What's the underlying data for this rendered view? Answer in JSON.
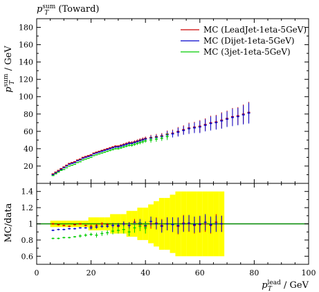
{
  "chart_data": [
    {
      "type": "scatter",
      "title": "p_T^sum (Toward)",
      "ylabel": "p_T^sum / GeV",
      "xlabel": "",
      "xlim": [
        0,
        100
      ],
      "ylim": [
        0,
        190
      ],
      "yticks": [
        20,
        40,
        60,
        80,
        100,
        120,
        140,
        160,
        180
      ],
      "legend_position": "top-right",
      "series": [
        {
          "name": "MC (LeadJet-1eta-5GeV)",
          "color": "#cc0000",
          "x": [
            6,
            7,
            8,
            9,
            10,
            11,
            12,
            13,
            14,
            15,
            16,
            17,
            18,
            19,
            20,
            21,
            22,
            23,
            24,
            25,
            26,
            27,
            28,
            29,
            30,
            31,
            32,
            33,
            34,
            35,
            36,
            37,
            38,
            39,
            40,
            42,
            44,
            46,
            48,
            50,
            52,
            54,
            56,
            58,
            60,
            62,
            64,
            66,
            68,
            70,
            72,
            74,
            76,
            78
          ],
          "y": [
            11,
            13,
            15,
            17,
            19,
            21,
            23,
            24,
            25,
            27,
            28,
            30,
            31,
            32,
            33,
            35,
            36,
            37,
            38,
            39,
            40,
            41,
            42,
            43,
            43,
            44,
            45,
            46,
            47,
            47,
            48,
            49,
            50,
            51,
            52,
            53,
            54,
            55,
            57,
            58,
            60,
            62,
            64,
            65,
            66,
            68,
            70,
            71,
            73,
            75,
            77,
            78,
            80,
            82
          ],
          "err": [
            0.3,
            0.3,
            0.3,
            0.3,
            0.3,
            0.3,
            0.3,
            0.3,
            0.3,
            0.4,
            0.4,
            0.4,
            0.4,
            0.5,
            0.5,
            0.5,
            0.6,
            0.6,
            0.7,
            0.7,
            0.8,
            0.9,
            1,
            1,
            1.1,
            1.2,
            1.3,
            1.4,
            1.5,
            1.6,
            1.7,
            1.8,
            2,
            2,
            2,
            3,
            3,
            3,
            4,
            4,
            5,
            5,
            6,
            6,
            7,
            7,
            8,
            8,
            9,
            9,
            10,
            10,
            11,
            12
          ]
        },
        {
          "name": "MC (Dijet-1eta-5GeV)",
          "color": "#0000cc",
          "x": [
            6,
            7,
            8,
            9,
            10,
            11,
            12,
            13,
            14,
            15,
            16,
            17,
            18,
            19,
            20,
            21,
            22,
            23,
            24,
            25,
            26,
            27,
            28,
            29,
            30,
            31,
            32,
            33,
            34,
            35,
            36,
            37,
            38,
            39,
            40,
            42,
            44,
            46,
            48,
            50,
            52,
            54,
            56,
            58,
            60,
            62,
            64,
            66,
            68,
            70,
            72,
            74,
            76,
            78
          ],
          "y": [
            10,
            12,
            14,
            16,
            18,
            20,
            22,
            23,
            24,
            26,
            27,
            29,
            30,
            31,
            32,
            34,
            35,
            36,
            37,
            38,
            39,
            40,
            41,
            42,
            42,
            43,
            44,
            45,
            46,
            46,
            47,
            48,
            49,
            50,
            51,
            52,
            53,
            54,
            56,
            57,
            59,
            61,
            63,
            64,
            65,
            67,
            69,
            70,
            72,
            74,
            76,
            77,
            79,
            81
          ],
          "err": [
            0.3,
            0.3,
            0.3,
            0.3,
            0.3,
            0.3,
            0.3,
            0.3,
            0.3,
            0.4,
            0.4,
            0.4,
            0.4,
            0.5,
            0.5,
            0.5,
            0.6,
            0.6,
            0.7,
            0.7,
            0.8,
            0.9,
            1,
            1,
            1.1,
            1.2,
            1.3,
            1.4,
            1.5,
            1.6,
            1.7,
            1.8,
            2,
            2,
            2,
            3,
            3,
            3,
            4,
            4,
            5,
            5,
            6,
            6,
            7,
            7,
            8,
            8,
            9,
            9,
            10,
            10,
            11,
            12
          ]
        },
        {
          "name": "MC (3jet-1eta-5GeV)",
          "color": "#00cc00",
          "x": [
            6,
            7,
            8,
            9,
            10,
            11,
            12,
            13,
            14,
            15,
            16,
            17,
            18,
            19,
            20,
            21,
            22,
            23,
            24,
            25,
            26,
            27,
            28,
            29,
            30,
            31,
            32,
            33,
            34,
            35,
            36,
            37,
            38,
            39,
            40,
            42,
            44,
            46,
            48
          ],
          "y": [
            9,
            11,
            13,
            15,
            16,
            18,
            20,
            21,
            22,
            24,
            25,
            27,
            28,
            29,
            30,
            32,
            33,
            34,
            35,
            36,
            37,
            38,
            39,
            40,
            40,
            41,
            42,
            43,
            44,
            44,
            45,
            46,
            47,
            48,
            49,
            50,
            51,
            52,
            54
          ],
          "err": [
            0.3,
            0.3,
            0.3,
            0.3,
            0.3,
            0.3,
            0.3,
            0.3,
            0.3,
            0.4,
            0.4,
            0.4,
            0.4,
            0.5,
            0.5,
            0.5,
            0.6,
            0.6,
            0.7,
            0.7,
            0.8,
            0.9,
            1,
            1,
            1.1,
            1.2,
            1.3,
            1.4,
            1.5,
            1.6,
            1.7,
            1.8,
            2,
            2,
            2,
            3,
            3,
            3,
            4
          ]
        }
      ]
    },
    {
      "type": "scatter",
      "ylabel": "MC/data",
      "xlabel": "p_T^lead / GeV",
      "xlim": [
        0,
        100
      ],
      "ylim": [
        0.5,
        1.5
      ],
      "xticks": [
        0,
        20,
        40,
        60,
        80,
        100
      ],
      "yticks": [
        0.6,
        0.8,
        1,
        1.2,
        1.4
      ],
      "reference_line": 1,
      "band_color": "#ffff00",
      "line_color": "#008800",
      "series": [
        {
          "name": "MC (LeadJet-1eta-5GeV)",
          "color": "#cc0000",
          "x": [
            6,
            8,
            10,
            12,
            14,
            16,
            18,
            20,
            22,
            24,
            26,
            28,
            30,
            32,
            34,
            36,
            38,
            40,
            42,
            44,
            46,
            48,
            50,
            52,
            54,
            56,
            58,
            60,
            62,
            64,
            66,
            68
          ],
          "y": [
            1.0,
            0.99,
            0.98,
            0.97,
            0.99,
            1.0,
            0.98,
            0.97,
            0.98,
            1.0,
            0.99,
            0.98,
            0.97,
            1.0,
            0.98,
            1.02,
            0.99,
            0.97,
            1.0,
            1.01,
            0.98,
            1.0,
            0.99,
            0.97,
            1.01,
            1.0,
            0.98,
            0.99,
            1.0,
            0.98,
            1.02,
            1.0
          ],
          "err": [
            0.01,
            0.01,
            0.01,
            0.01,
            0.01,
            0.01,
            0.01,
            0.02,
            0.02,
            0.02,
            0.02,
            0.03,
            0.03,
            0.03,
            0.04,
            0.04,
            0.05,
            0.05,
            0.06,
            0.07,
            0.08,
            0.08,
            0.09,
            0.1,
            0.1,
            0.1,
            0.1,
            0.1,
            0.1,
            0.1,
            0.1,
            0.1
          ]
        },
        {
          "name": "MC (Dijet-1eta-5GeV)",
          "color": "#0000cc",
          "x": [
            6,
            8,
            10,
            12,
            14,
            16,
            18,
            20,
            22,
            24,
            26,
            28,
            30,
            32,
            34,
            36,
            38,
            40,
            42,
            44,
            46,
            48,
            50,
            52,
            54,
            56,
            58,
            60,
            62,
            64,
            66,
            68
          ],
          "y": [
            0.92,
            0.93,
            0.93,
            0.94,
            0.94,
            0.95,
            0.95,
            0.95,
            0.96,
            0.97,
            0.97,
            0.98,
            0.98,
            1.0,
            0.98,
            1.0,
            1.01,
            0.98,
            1.03,
            1.0,
            0.97,
            1.0,
            0.99,
            0.98,
            1.0,
            1.01,
            0.99,
            1.0,
            1.02,
            0.99,
            1.0,
            1.0
          ],
          "err": [
            0.01,
            0.01,
            0.01,
            0.01,
            0.01,
            0.01,
            0.01,
            0.02,
            0.02,
            0.02,
            0.02,
            0.03,
            0.03,
            0.03,
            0.04,
            0.04,
            0.05,
            0.05,
            0.06,
            0.07,
            0.08,
            0.08,
            0.09,
            0.1,
            0.1,
            0.1,
            0.1,
            0.1,
            0.1,
            0.1,
            0.1,
            0.1
          ]
        },
        {
          "name": "MC (3jet-1eta-5GeV)",
          "color": "#00cc00",
          "x": [
            6,
            8,
            10,
            12,
            14,
            16,
            18,
            20,
            22,
            24,
            26,
            28,
            30,
            32,
            34,
            36,
            38,
            40
          ],
          "y": [
            0.82,
            0.82,
            0.83,
            0.83,
            0.84,
            0.85,
            0.86,
            0.87,
            0.86,
            0.88,
            0.89,
            0.91,
            0.92,
            0.93,
            0.9,
            0.95,
            0.97,
            0.95
          ],
          "err": [
            0.01,
            0.01,
            0.01,
            0.01,
            0.01,
            0.02,
            0.02,
            0.02,
            0.03,
            0.03,
            0.03,
            0.04,
            0.04,
            0.05,
            0.05,
            0.06,
            0.06,
            0.07
          ]
        }
      ]
    }
  ]
}
